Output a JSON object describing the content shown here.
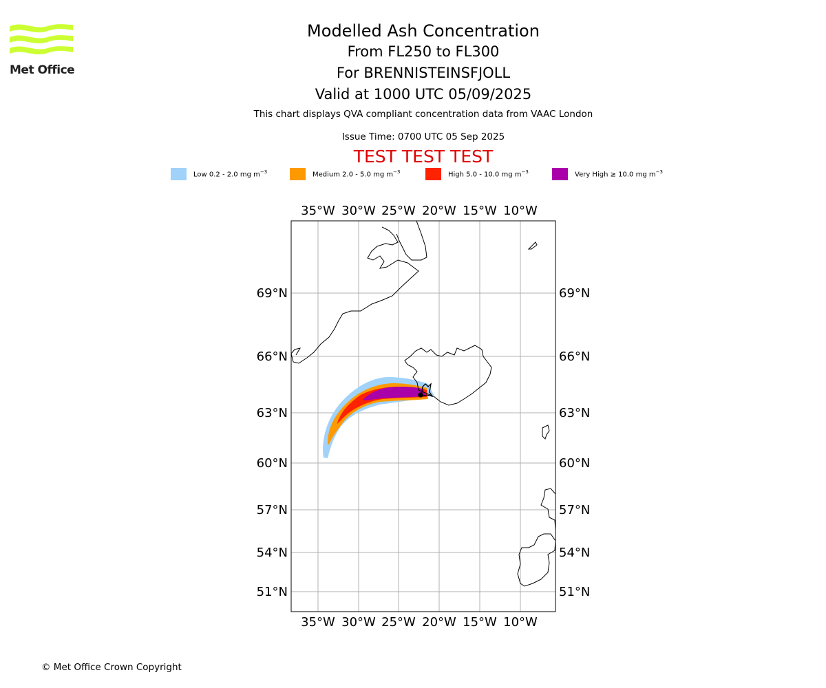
{
  "logo": {
    "text": "Met Office",
    "icon": "met-office-wave-logo",
    "color": "#ccff33"
  },
  "header": {
    "title": "Modelled Ash Concentration",
    "levels": "From FL250 to FL300",
    "volcano": "For BRENNISTEINSFJOLL",
    "valid": "Valid at 1000 UTC 05/09/2025",
    "description": "This chart displays QVA compliant concentration data from VAAC London",
    "issue_time": "Issue Time: 0700 UTC 05 Sep 2025",
    "test_banner": "TEST TEST TEST",
    "test_color": "#e10000"
  },
  "legend": [
    {
      "label": "Low 0.2 - 2.0 mg m",
      "unit_exp": "−3",
      "color": "#a0d2fa"
    },
    {
      "label": "Medium 2.0 - 5.0 mg m",
      "unit_exp": "−3",
      "color": "#ff9900"
    },
    {
      "label": "High 5.0 - 10.0 mg m",
      "unit_exp": "−3",
      "color": "#ff2200"
    },
    {
      "label": "Very High ≥ 10.0 mg m",
      "unit_exp": "−3",
      "color": "#aa00aa"
    }
  ],
  "map": {
    "lon_ticks": [
      "35°W",
      "30°W",
      "25°W",
      "20°W",
      "15°W",
      "10°W"
    ],
    "lat_ticks": [
      "69°N",
      "66°N",
      "63°N",
      "60°N",
      "57°N",
      "54°N",
      "51°N"
    ]
  },
  "footer": {
    "copyright": "© Met Office Crown Copyright"
  }
}
